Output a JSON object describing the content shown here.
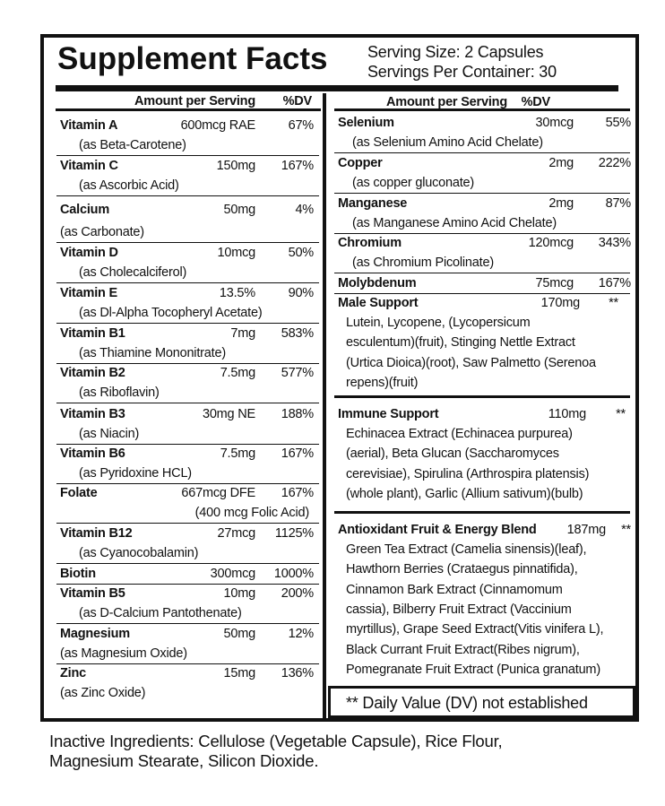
{
  "title": "Supplement Facts",
  "serving_size": "Serving Size: 2 Capsules",
  "servings_per_container": "Servings Per Container: 30",
  "left": {
    "header_amount": "Amount per Serving",
    "header_dv": "%DV",
    "rows": [
      {
        "name": "Vitamin A",
        "amount": "600mcg RAE",
        "dv": "67%",
        "source": "(as Beta-Carotene)"
      },
      {
        "name": "Vitamin C",
        "amount": "150mg",
        "dv": "167%",
        "source": "(as Ascorbic Acid)"
      },
      {
        "name": "Calcium",
        "amount": "50mg",
        "dv": "4%",
        "source": "(as Carbonate)"
      },
      {
        "name": "Vitamin D",
        "amount": "10mcg",
        "dv": "50%",
        "source": "(as Cholecalciferol)"
      },
      {
        "name": "Vitamin E",
        "amount": "13.5%",
        "dv": "90%",
        "source": "(as Dl-Alpha Tocopheryl Acetate)"
      },
      {
        "name": "Vitamin B1",
        "amount": "7mg",
        "dv": "583%",
        "source": "(as Thiamine Mononitrate)"
      },
      {
        "name": "Vitamin B2",
        "amount": "7.5mg",
        "dv": "577%",
        "source": "(as Riboflavin)"
      },
      {
        "name": "Vitamin B3",
        "amount": "30mg NE",
        "dv": "188%",
        "source": "(as Niacin)"
      },
      {
        "name": "Vitamin B6",
        "amount": "7.5mg",
        "dv": "167%",
        "source": "(as Pyridoxine HCL)"
      },
      {
        "name": "Folate",
        "amount": "667mcg DFE",
        "dv": "167%",
        "source": "(400 mcg Folic Acid)"
      },
      {
        "name": "Vitamin B12",
        "amount": "27mcg",
        "dv": "1125%",
        "source": "(as Cyanocobalamin)"
      },
      {
        "name": "Biotin",
        "amount": "300mcg",
        "dv": "1000%"
      },
      {
        "name": "Vitamin B5",
        "amount": "10mg",
        "dv": "200%",
        "source": "(as D-Calcium Pantothenate)"
      },
      {
        "name": "Magnesium",
        "amount": "50mg",
        "dv": "12%",
        "source": "(as Magnesium Oxide)"
      },
      {
        "name": "Zinc",
        "amount": "15mg",
        "dv": "136%",
        "source": "(as Zinc Oxide)"
      }
    ]
  },
  "right": {
    "header_amount": "Amount per Serving",
    "header_dv": "%DV",
    "rows": [
      {
        "name": "Selenium",
        "amount": "30mcg",
        "dv": "55%",
        "source": "(as Selenium Amino Acid Chelate)"
      },
      {
        "name": "Copper",
        "amount": "2mg",
        "dv": "222%",
        "source": "(as copper gluconate)"
      },
      {
        "name": "Manganese",
        "amount": "2mg",
        "dv": "87%",
        "source": "(as Manganese Amino Acid Chelate)"
      },
      {
        "name": "Chromium",
        "amount": "120mcg",
        "dv": "343%",
        "source": "(as Chromium Picolinate)"
      },
      {
        "name": "Molybdenum",
        "amount": "75mcg",
        "dv": "167%"
      }
    ],
    "blends": [
      {
        "name": "Male Support",
        "amount": "170mg",
        "dv": "**",
        "lines": [
          "Lutein, Lycopene, (Lycopersicum",
          "esculentum)(fruit), Stinging Nettle Extract",
          "(Urtica Dioica)(root), Saw Palmetto (Serenoa",
          "repens)(fruit)"
        ]
      },
      {
        "name": "Immune Support",
        "amount": "110mg",
        "dv": "**",
        "lines": [
          "Echinacea Extract (Echinacea purpurea)",
          "(aerial), Beta Glucan (Saccharomyces",
          "cerevisiae),  Spirulina (Arthrospira platensis)",
          "(whole plant), Garlic (Allium sativum)(bulb)"
        ]
      },
      {
        "name": "Antioxidant Fruit & Energy Blend",
        "amount": "187mg",
        "dv": "**",
        "lines": [
          "Green Tea Extract (Camelia sinensis)(leaf),",
          "Hawthorn Berries (Crataegus pinnatifida),",
          "Cinnamon Bark Extract (Cinnamomum",
          "cassia), Bilberry Fruit Extract (Vaccinium",
          "myrtillus), Grape Seed Extract(Vitis vinifera L),",
          "Black Currant Fruit Extract(Ribes nigrum),",
          "Pomegranate Fruit Extract (Punica granatum)"
        ]
      }
    ]
  },
  "footnote": "** Daily Value (DV) not established",
  "inactive": [
    "Inactive Ingredients: Cellulose (Vegetable Capsule), Rice Flour,",
    "Magnesium Stearate, Silicon Dioxide."
  ]
}
